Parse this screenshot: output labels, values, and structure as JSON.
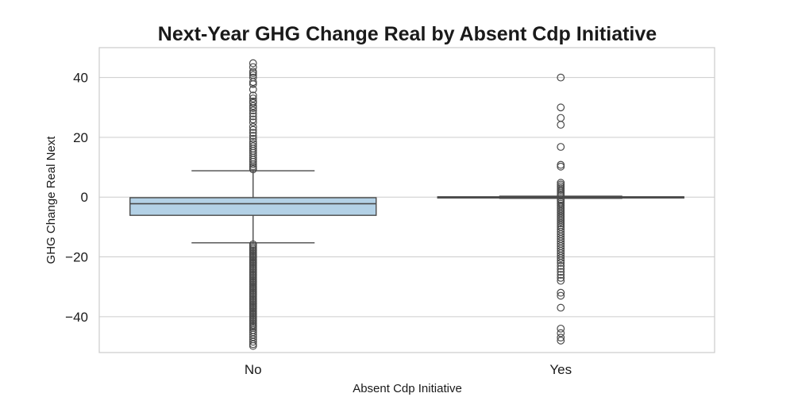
{
  "chart_data": {
    "type": "box",
    "title": "Next-Year GHG Change Real by Absent Cdp Initiative",
    "xlabel": "Absent Cdp Initiative",
    "ylabel": "GHG Change Real Next",
    "ylim": [
      -52,
      50
    ],
    "yticks": [
      -40,
      -20,
      0,
      20,
      40
    ],
    "yticklabels": [
      "−40",
      "−20",
      "0",
      "20",
      "40"
    ],
    "grid": true,
    "categories": [
      "No",
      "Yes"
    ],
    "boxes": [
      {
        "category": "No",
        "whisker_low": -15.3,
        "q1": -6.1,
        "median": -2.2,
        "q3": -0.2,
        "whisker_high": 8.8,
        "fill": "#b3d1e6",
        "outliers": [
          44.8,
          43.5,
          42.0,
          41.5,
          40.8,
          40.0,
          38.5,
          37.8,
          36.0,
          34.0,
          33.0,
          32.0,
          31.5,
          30.5,
          29.8,
          29.0,
          28.0,
          27.0,
          26.0,
          25.0,
          23.5,
          22.5,
          21.5,
          20.5,
          19.5,
          18.5,
          17.8,
          17.0,
          16.2,
          15.5,
          14.8,
          14.0,
          13.2,
          12.5,
          11.8,
          11.0,
          10.3,
          9.8,
          9.3,
          -15.8,
          -16.3,
          -16.8,
          -17.3,
          -17.8,
          -18.3,
          -18.8,
          -19.3,
          -19.8,
          -20.3,
          -20.8,
          -21.3,
          -21.8,
          -22.3,
          -22.8,
          -23.3,
          -23.8,
          -24.3,
          -24.8,
          -25.3,
          -25.8,
          -26.3,
          -26.8,
          -27.3,
          -27.8,
          -28.3,
          -28.8,
          -29.3,
          -29.8,
          -30.3,
          -30.8,
          -31.3,
          -31.8,
          -32.3,
          -32.8,
          -33.3,
          -33.8,
          -34.3,
          -34.8,
          -35.3,
          -35.8,
          -36.3,
          -36.8,
          -37.3,
          -37.8,
          -38.3,
          -38.8,
          -39.3,
          -39.8,
          -40.3,
          -40.8,
          -41.3,
          -41.8,
          -42.3,
          -42.8,
          -43.3,
          -43.8,
          -44.5,
          -45.2,
          -46.0,
          -46.8,
          -47.6,
          -48.4,
          -49.2,
          -49.8
        ]
      },
      {
        "category": "Yes",
        "whisker_low": -0.4,
        "q1": -0.2,
        "median": 0.0,
        "q3": 0.1,
        "whisker_high": 0.3,
        "fill": "#b3d1e6",
        "outliers": [
          40.0,
          30.0,
          26.5,
          24.2,
          16.8,
          10.8,
          10.2,
          4.8,
          4.2,
          3.6,
          3.0,
          2.4,
          1.9,
          1.4,
          0.9,
          0.5,
          -0.8,
          -1.2,
          -1.7,
          -2.2,
          -2.8,
          -3.4,
          -4.0,
          -4.6,
          -5.2,
          -5.8,
          -6.4,
          -7.0,
          -7.6,
          -8.2,
          -8.8,
          -9.4,
          -10.0,
          -10.8,
          -11.6,
          -12.4,
          -13.2,
          -14.0,
          -14.8,
          -15.6,
          -16.4,
          -17.2,
          -18.0,
          -18.8,
          -19.6,
          -20.4,
          -21.2,
          -22.0,
          -23.0,
          -24.0,
          -25.0,
          -26.0,
          -27.0,
          -28.0,
          -32.0,
          -33.0,
          -37.0,
          -44.0,
          -45.5,
          -47.0,
          -48.0
        ]
      }
    ]
  }
}
